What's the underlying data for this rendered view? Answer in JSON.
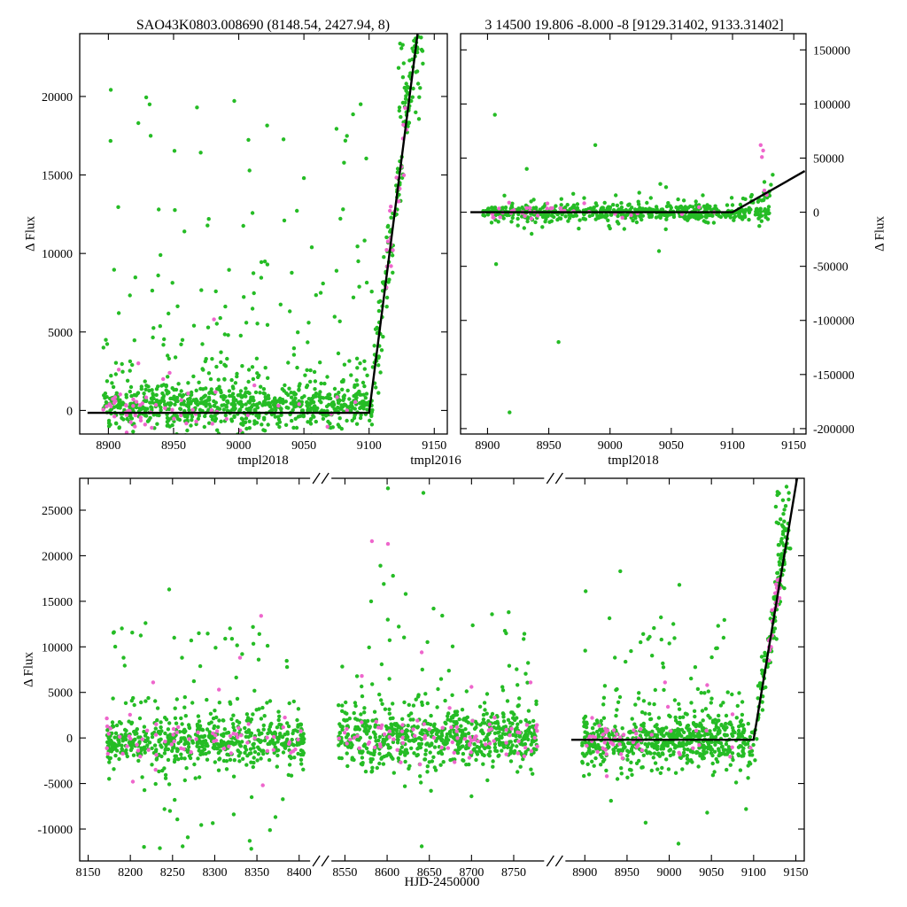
{
  "figure": {
    "colors": {
      "green": "#25bc25",
      "magenta": "#ee66cc",
      "line": "#000000",
      "background": "#ffffff"
    }
  },
  "labels": {
    "title_left": "SAO43K0803.008690 (8148.54, 2427.94, 8)",
    "title_right": "3 14500 19.806 -8.000 -8 [9129.31402, 9133.31402]",
    "ylabel_left": "Δ Flux",
    "ylabel_right": "Δ Flux",
    "ylabel_bottom": "Δ Flux",
    "xlabel_left": "tmpl2018",
    "xlabel_mid": "tmpl2016",
    "xlabel_right": "tmpl2018",
    "xlabel_bottom": "HJD-2450000"
  },
  "chart_data": [
    {
      "id": "top_left",
      "type": "scatter",
      "title": "SAO43K0803.008690 (8148.54, 2427.94, 8)",
      "xlabel": "tmpl2018",
      "ylabel": "Δ Flux",
      "ylim": [
        -1500,
        24000
      ],
      "yticks": [
        0,
        5000,
        10000,
        15000,
        20000
      ],
      "segments": [
        {
          "xlim": [
            8878,
            9160
          ],
          "xticks": [
            8900,
            8950,
            9000,
            9050,
            9100,
            9150
          ]
        }
      ],
      "fit_line": [
        [
          8884,
          -150
        ],
        [
          9100,
          -150
        ],
        [
          9138,
          24500
        ]
      ],
      "clusters": [
        {
          "series": "green",
          "kind": "gauss",
          "n": 620,
          "x": [
            8896,
            9104
          ],
          "mean": 150,
          "sd": 650
        },
        {
          "series": "green",
          "kind": "exp",
          "n": 240,
          "x": [
            8896,
            9104
          ],
          "y0": 300,
          "scale": 1700,
          "cap": 9500
        },
        {
          "series": "green",
          "kind": "uniform",
          "n": 50,
          "x": [
            8900,
            9100
          ],
          "y": [
            5000,
            20500
          ]
        },
        {
          "series": "green",
          "kind": "points",
          "pts": [
            [
              8968,
              19300
            ],
            [
              8923,
              18300
            ],
            [
              9050,
              14800
            ],
            [
              8977,
              12200
            ],
            [
              9035,
              12100
            ],
            [
              8940,
              9900
            ],
            [
              9022,
              9300
            ],
            [
              9075,
              8900
            ],
            [
              8908,
              6200
            ],
            [
              9088,
              7200
            ]
          ]
        },
        {
          "series": "green",
          "kind": "branch",
          "n": 130,
          "x": [
            9104,
            9140
          ],
          "p0": [
            9100,
            0
          ],
          "p1": [
            9137,
            24200
          ],
          "jitter": 1300
        },
        {
          "series": "green",
          "kind": "uniform",
          "n": 35,
          "x": [
            9122,
            9142
          ],
          "y": [
            18000,
            23800
          ]
        },
        {
          "series": "magenta",
          "kind": "gauss",
          "n": 45,
          "x": [
            8896,
            8968
          ],
          "mean": 0,
          "sd": 700
        },
        {
          "series": "magenta",
          "kind": "gauss",
          "n": 14,
          "x": [
            8970,
            9100
          ],
          "mean": 0,
          "sd": 800
        },
        {
          "series": "magenta",
          "kind": "points",
          "pts": [
            [
              8908,
              2600
            ],
            [
              8923,
              3000
            ],
            [
              8981,
              5800
            ],
            [
              8947,
              2400
            ],
            [
              9012,
              1600
            ]
          ]
        },
        {
          "series": "magenta",
          "kind": "branch",
          "n": 22,
          "x": [
            9113,
            9130
          ],
          "p0": [
            9100,
            0
          ],
          "p1": [
            9137,
            24200
          ],
          "jitter": 1200
        }
      ]
    },
    {
      "id": "top_right",
      "type": "scatter",
      "title": "3 14500 19.806 -8.000 -8 [9129.31402, 9133.31402]",
      "xlabel": "tmpl2018",
      "ylabel": "Δ Flux",
      "ylim": [
        -205000,
        165000
      ],
      "yticks": [
        -200000,
        -150000,
        -100000,
        -50000,
        0,
        50000,
        100000,
        150000
      ],
      "segments": [
        {
          "xlim": [
            8878,
            9160
          ],
          "xticks": [
            8900,
            8950,
            9000,
            9050,
            9100,
            9150
          ]
        }
      ],
      "fit_line": [
        [
          8886,
          0
        ],
        [
          9100,
          0
        ],
        [
          9159,
          38000
        ]
      ],
      "clusters": [
        {
          "series": "green",
          "kind": "gauss",
          "n": 470,
          "x": [
            8896,
            9130
          ],
          "mean": 0,
          "sd": 3500
        },
        {
          "series": "green",
          "kind": "gauss",
          "n": 110,
          "x": [
            8896,
            9130
          ],
          "mean": 0,
          "sd": 9000
        },
        {
          "series": "green",
          "kind": "points",
          "pts": [
            [
              8906,
              90000
            ],
            [
              8988,
              62000
            ],
            [
              8932,
              40000
            ],
            [
              8970,
              17000
            ],
            [
              9126,
              28000
            ],
            [
              8907,
              -48000
            ],
            [
              8958,
              -120000
            ],
            [
              8918,
              -185000
            ],
            [
              9040,
              -36000
            ],
            [
              8936,
              -20000
            ],
            [
              9000,
              -15000
            ]
          ]
        },
        {
          "series": "green",
          "kind": "branch",
          "n": 20,
          "x": [
            9105,
            9134
          ],
          "p0": [
            9100,
            0
          ],
          "p1": [
            9160,
            38000
          ],
          "jitter": 5000
        },
        {
          "series": "magenta",
          "kind": "gauss",
          "n": 26,
          "x": [
            8898,
            8965
          ],
          "mean": 0,
          "sd": 3500
        },
        {
          "series": "magenta",
          "kind": "gauss",
          "n": 10,
          "x": [
            8970,
            9110
          ],
          "mean": 0,
          "sd": 3000
        },
        {
          "series": "magenta",
          "kind": "points",
          "pts": [
            [
              9123,
              62000
            ],
            [
              9125,
              57000
            ],
            [
              9124,
              51000
            ],
            [
              9126,
              20000
            ],
            [
              9128,
              16000
            ]
          ]
        }
      ]
    },
    {
      "id": "bottom",
      "type": "scatter",
      "title": "",
      "xlabel": "HJD-2450000",
      "ylabel": "Δ Flux",
      "ylim": [
        -13500,
        28500
      ],
      "yticks": [
        -10000,
        -5000,
        0,
        5000,
        10000,
        15000,
        20000,
        25000
      ],
      "segments": [
        {
          "xlim": [
            8140,
            8412
          ],
          "xticks": [
            8150,
            8200,
            8250,
            8300,
            8350,
            8400
          ]
        },
        {
          "xlim": [
            8535,
            8785
          ],
          "xticks": [
            8550,
            8600,
            8650,
            8700,
            8750
          ]
        },
        {
          "xlim": [
            8878,
            9160
          ],
          "xticks": [
            8900,
            8950,
            9000,
            9050,
            9100,
            9150
          ]
        }
      ],
      "fit_line": [
        [
          8884,
          -200
        ],
        [
          9100,
          -200
        ],
        [
          9152,
          28800
        ]
      ],
      "clusters": [
        {
          "series": "green",
          "kind": "gauss",
          "n": 500,
          "x": [
            8172,
            8406
          ],
          "mean": -300,
          "sd": 1100
        },
        {
          "series": "green",
          "kind": "uniform",
          "n": 120,
          "x": [
            8172,
            8406
          ],
          "y": [
            -4500,
            4500
          ]
        },
        {
          "series": "green",
          "kind": "uniform",
          "n": 26,
          "x": [
            8175,
            8400
          ],
          "y": [
            4500,
            12500
          ]
        },
        {
          "series": "green",
          "kind": "uniform",
          "n": 18,
          "x": [
            8175,
            8400
          ],
          "y": [
            -4500,
            -12300
          ]
        },
        {
          "series": "green",
          "kind": "points",
          "pts": [
            [
              8246,
              16300
            ],
            [
              8218,
              12600
            ],
            [
              8252,
              11000
            ],
            [
              8301,
              9900
            ],
            [
              8192,
              8800
            ],
            [
              8352,
              8600
            ],
            [
              8235,
              -12100
            ],
            [
              8262,
              -11900
            ],
            [
              8268,
              -10900
            ]
          ]
        },
        {
          "series": "magenta",
          "kind": "gauss",
          "n": 65,
          "x": [
            8172,
            8406
          ],
          "mean": -200,
          "sd": 1000
        },
        {
          "series": "magenta",
          "kind": "points",
          "pts": [
            [
              8355,
              13400
            ],
            [
              8227,
              6100
            ],
            [
              8305,
              5300
            ],
            [
              8330,
              8800
            ],
            [
              8203,
              -4800
            ],
            [
              8357,
              -5200
            ],
            [
              8230,
              -3500
            ]
          ]
        },
        {
          "series": "green",
          "kind": "gauss",
          "n": 560,
          "x": [
            8542,
            8778
          ],
          "mean": 200,
          "sd": 1400
        },
        {
          "series": "green",
          "kind": "uniform",
          "n": 130,
          "x": [
            8542,
            8778
          ],
          "y": [
            -4000,
            5500
          ]
        },
        {
          "series": "green",
          "kind": "uniform",
          "n": 30,
          "x": [
            8545,
            8775
          ],
          "y": [
            5500,
            14000
          ]
        },
        {
          "series": "green",
          "kind": "points",
          "pts": [
            [
              8601,
              27400
            ],
            [
              8643,
              26900
            ],
            [
              8592,
              18900
            ],
            [
              8607,
              17800
            ],
            [
              8596,
              16900
            ],
            [
              8622,
              15800
            ],
            [
              8581,
              15000
            ],
            [
              8655,
              14200
            ],
            [
              8744,
              13800
            ],
            [
              8641,
              -11900
            ],
            [
              8700,
              -6400
            ],
            [
              8652,
              -5800
            ],
            [
              8621,
              -5300
            ],
            [
              8640,
              -4900
            ],
            [
              8639,
              -4200
            ]
          ]
        },
        {
          "series": "magenta",
          "kind": "gauss",
          "n": 85,
          "x": [
            8542,
            8778
          ],
          "mean": -100,
          "sd": 1200
        },
        {
          "series": "magenta",
          "kind": "points",
          "pts": [
            [
              8582,
              21600
            ],
            [
              8601,
              21300
            ],
            [
              8641,
              9400
            ],
            [
              8570,
              6800
            ],
            [
              8700,
              5600
            ],
            [
              8770,
              6100
            ],
            [
              8639,
              -2900
            ]
          ]
        },
        {
          "series": "green",
          "kind": "gauss",
          "n": 520,
          "x": [
            8896,
            9104
          ],
          "mean": -200,
          "sd": 1400
        },
        {
          "series": "green",
          "kind": "uniform",
          "n": 110,
          "x": [
            8896,
            9104
          ],
          "y": [
            -4500,
            5500
          ]
        },
        {
          "series": "green",
          "kind": "uniform",
          "n": 26,
          "x": [
            8900,
            9100
          ],
          "y": [
            5500,
            13500
          ]
        },
        {
          "series": "green",
          "kind": "points",
          "pts": [
            [
              8942,
              18300
            ],
            [
              9012,
              16800
            ],
            [
              8901,
              16100
            ],
            [
              9058,
              12300
            ],
            [
              8972,
              -9300
            ],
            [
              9011,
              -11600
            ],
            [
              9045,
              -8200
            ],
            [
              9091,
              -7800
            ],
            [
              8931,
              -6900
            ]
          ]
        },
        {
          "series": "green",
          "kind": "branch",
          "n": 120,
          "x": [
            9104,
            9140
          ],
          "p0": [
            9100,
            0
          ],
          "p1": [
            9151,
            28500
          ],
          "jitter": 1500
        },
        {
          "series": "green",
          "kind": "uniform",
          "n": 26,
          "x": [
            9126,
            9144
          ],
          "y": [
            20000,
            27800
          ]
        },
        {
          "series": "magenta",
          "kind": "gauss",
          "n": 40,
          "x": [
            8896,
            8968
          ],
          "mean": 0,
          "sd": 1100
        },
        {
          "series": "magenta",
          "kind": "gauss",
          "n": 12,
          "x": [
            8970,
            9100
          ],
          "mean": 200,
          "sd": 1500
        },
        {
          "series": "magenta",
          "kind": "points",
          "pts": [
            [
              8995,
              6100
            ],
            [
              9045,
              5800
            ],
            [
              8926,
              -4200
            ],
            [
              9075,
              2600
            ]
          ]
        },
        {
          "series": "magenta",
          "kind": "branch",
          "n": 24,
          "x": [
            9118,
            9132
          ],
          "p0": [
            9100,
            0
          ],
          "p1": [
            9151,
            28500
          ],
          "jitter": 1400
        }
      ]
    }
  ]
}
